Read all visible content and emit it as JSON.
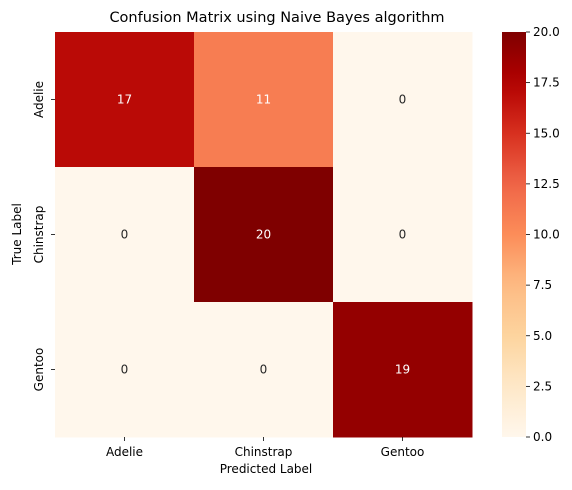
{
  "chart_data": {
    "type": "heatmap",
    "title": "Confusion Matrix using Naive Bayes algorithm",
    "xlabel": "Predicted Label",
    "ylabel": "True Label",
    "x_categories": [
      "Adelie",
      "Chinstrap",
      "Gentoo"
    ],
    "y_categories": [
      "Adelie",
      "Chinstrap",
      "Gentoo"
    ],
    "values": [
      [
        17,
        11,
        0
      ],
      [
        0,
        20,
        0
      ],
      [
        0,
        0,
        19
      ]
    ],
    "colormap": "OrRd",
    "color_range": [
      0,
      20
    ],
    "colorbar_ticks": [
      "0.0",
      "2.5",
      "5.0",
      "7.5",
      "10.0",
      "12.5",
      "15.0",
      "17.5",
      "20.0"
    ],
    "annotations": true,
    "grid": false
  }
}
